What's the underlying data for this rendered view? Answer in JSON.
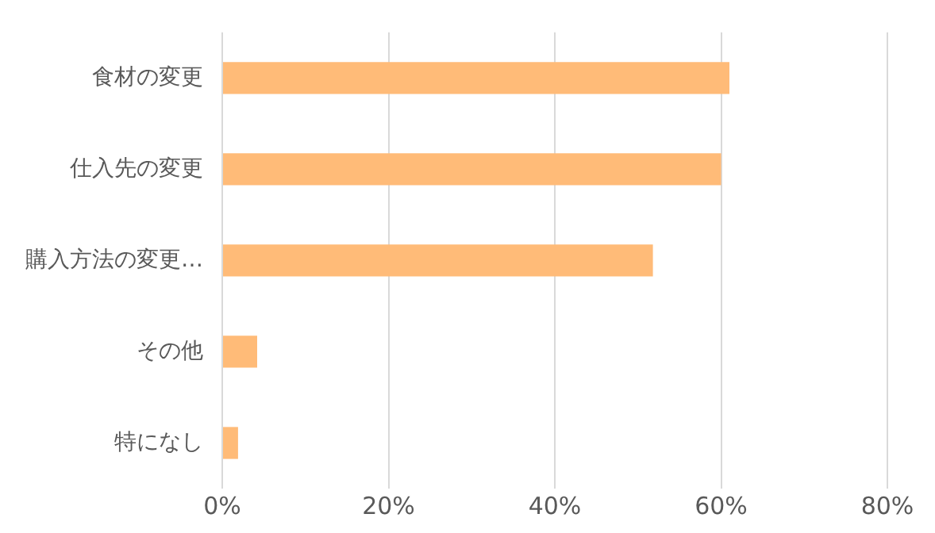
{
  "chart_data": {
    "type": "bar",
    "orientation": "horizontal",
    "categories": [
      "食材の変更",
      "仕入先の変更",
      "購入方法の変更…",
      "その他",
      "特になし"
    ],
    "values": [
      61.0,
      60.0,
      51.8,
      4.2,
      1.9
    ],
    "color": "#ffbb78",
    "xlim": [
      0,
      80
    ],
    "xticks": [
      {
        "value": 0,
        "label": "0%"
      },
      {
        "value": 20,
        "label": "20%"
      },
      {
        "value": 40,
        "label": "40%"
      },
      {
        "value": 60,
        "label": "60%"
      },
      {
        "value": 80,
        "label": "80%"
      }
    ],
    "grid": "x",
    "legend": false
  }
}
